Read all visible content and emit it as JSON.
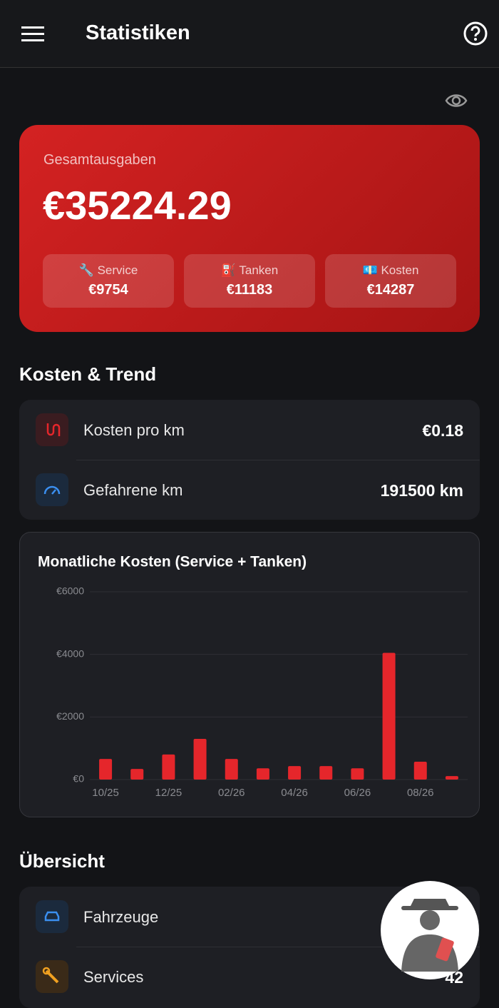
{
  "header": {
    "title": "Statistiken"
  },
  "summary": {
    "label": "Gesamtausgaben",
    "total": "€35224.29",
    "items": [
      {
        "label": "🔧 Service",
        "value": "€9754"
      },
      {
        "label": "⛽ Tanken",
        "value": "€11183"
      },
      {
        "label": "💶 Kosten",
        "value": "€14287"
      }
    ]
  },
  "trend": {
    "heading": "Kosten & Trend",
    "rows": [
      {
        "label": "Kosten pro km",
        "value": "€0.18"
      },
      {
        "label": "Gefahrene km",
        "value": "191500 km"
      }
    ]
  },
  "chart_data": {
    "type": "bar",
    "title": "Monatliche Kosten (Service + Tanken)",
    "categories": [
      "10/25",
      null,
      "12/25",
      null,
      "02/26",
      null,
      "04/26",
      null,
      "06/26",
      null,
      "08/26",
      null
    ],
    "values": [
      660,
      340,
      800,
      1300,
      660,
      360,
      430,
      430,
      360,
      4050,
      570,
      110
    ],
    "color": "#e5262b",
    "ylim": [
      0,
      6000
    ],
    "yticks": [
      {
        "value": 0,
        "label": "€0"
      },
      {
        "value": 2000,
        "label": "€2000"
      },
      {
        "value": 4000,
        "label": "€4000"
      },
      {
        "value": 6000,
        "label": "€6000"
      }
    ],
    "grid": true
  },
  "overview": {
    "heading": "Übersicht",
    "rows": [
      {
        "label": "Fahrzeuge"
      },
      {
        "label": "Services",
        "value": "42"
      }
    ]
  }
}
